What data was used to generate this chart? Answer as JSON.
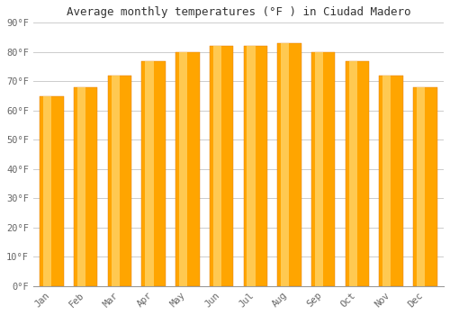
{
  "title": "Average monthly temperatures (°F ) in Ciudad Madero",
  "months": [
    "Jan",
    "Feb",
    "Mar",
    "Apr",
    "May",
    "Jun",
    "Jul",
    "Aug",
    "Sep",
    "Oct",
    "Nov",
    "Dec"
  ],
  "values": [
    65,
    68,
    72,
    77,
    80,
    82,
    82,
    83,
    80,
    77,
    72,
    68
  ],
  "bar_color_main": "#FFA500",
  "bar_color_light": "#FFD060",
  "bar_color_dark": "#E07800",
  "background_color": "#FFFFFF",
  "plot_bg_color": "#FFFFFF",
  "grid_color": "#CCCCCC",
  "text_color": "#666666",
  "title_color": "#333333",
  "ylim": [
    0,
    90
  ],
  "yticks": [
    0,
    10,
    20,
    30,
    40,
    50,
    60,
    70,
    80,
    90
  ],
  "ytick_labels": [
    "0°F",
    "10°F",
    "20°F",
    "30°F",
    "40°F",
    "50°F",
    "60°F",
    "70°F",
    "80°F",
    "90°F"
  ],
  "title_fontsize": 9,
  "tick_fontsize": 7.5,
  "font_family": "monospace",
  "bar_width": 0.7
}
